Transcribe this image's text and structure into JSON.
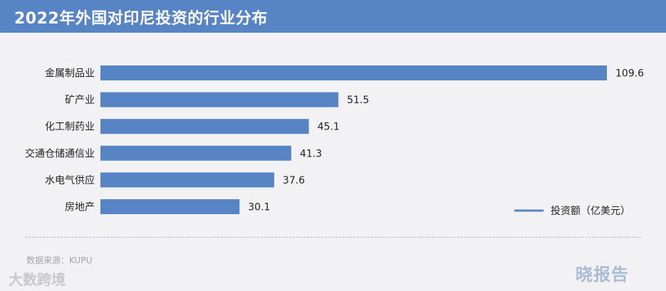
{
  "header": {
    "title": "2022年外国对印尼投资的行业分布"
  },
  "chart_data": {
    "type": "bar",
    "orientation": "horizontal",
    "title": "2022年外国对印尼投资的行业分布",
    "categories": [
      "金属制品业",
      "矿产业",
      "化工制药业",
      "交通仓储通信业",
      "水电气供应",
      "房地产"
    ],
    "series": [
      {
        "name": "投资额（亿美元）",
        "values": [
          109.6,
          51.5,
          45.1,
          41.3,
          37.6,
          30.1
        ]
      }
    ],
    "xlim": [
      0,
      109.6
    ],
    "grid": false,
    "legend_position": "bottom-right",
    "bar_color": "#5684c4"
  },
  "footer": {
    "source": "数据来源：KUPU",
    "watermark_left": "大数跨境",
    "watermark_right": "晓报告"
  }
}
